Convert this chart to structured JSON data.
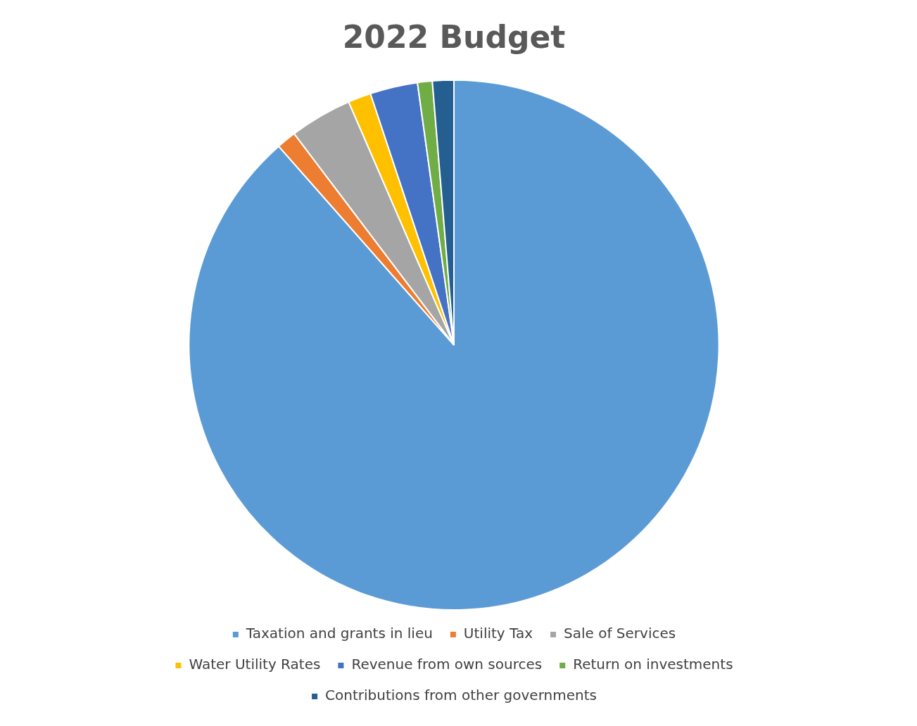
{
  "chart_data": {
    "type": "pie",
    "title": "2022 Budget",
    "categories": [
      "Taxation and grants in lieu",
      "Utility Tax",
      "Sale of Services",
      "Water Utility Rates",
      "Revenue from own sources",
      "Return on investments",
      "Contributions from other governments"
    ],
    "values": [
      88.5,
      1.2,
      3.8,
      1.4,
      2.9,
      0.9,
      1.3
    ],
    "colors": [
      "#5b9bd5",
      "#ed7d31",
      "#a5a5a5",
      "#ffc000",
      "#4472c4",
      "#70ad47",
      "#255e91"
    ],
    "legend": "bottom"
  }
}
